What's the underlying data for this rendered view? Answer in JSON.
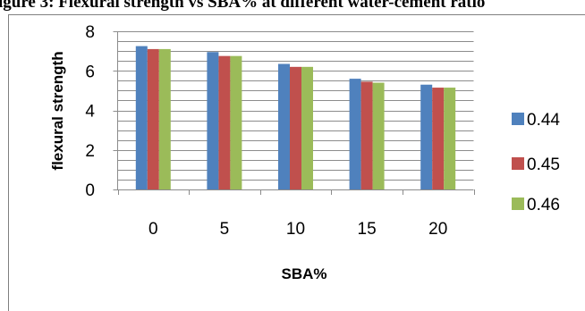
{
  "caption": {
    "text": "igure 3: Flexural strength vs SBA% at different water-cement ratio"
  },
  "colors": {
    "frame": "#7f7f7f",
    "grid": "#8c8c8c",
    "axis": "#8c8c8c"
  },
  "chart_data": {
    "type": "bar",
    "xlabel": "SBA%",
    "ylabel": "flexural strength",
    "ylim": [
      0,
      8
    ],
    "yticks": [
      0,
      2,
      4,
      6,
      8
    ],
    "categories": [
      "0",
      "5",
      "10",
      "15",
      "20"
    ],
    "grid": "horizontal major and minor",
    "legend": "right",
    "series": [
      {
        "name": "0.44",
        "color": "#4f81bd",
        "values": [
          7.25,
          6.95,
          6.35,
          5.6,
          5.3
        ]
      },
      {
        "name": "0.45",
        "color": "#c0504d",
        "values": [
          7.1,
          6.75,
          6.2,
          5.45,
          5.15
        ]
      },
      {
        "name": "0.46",
        "color": "#9bbb59",
        "values": [
          7.1,
          6.75,
          6.2,
          5.4,
          5.15
        ]
      }
    ]
  }
}
